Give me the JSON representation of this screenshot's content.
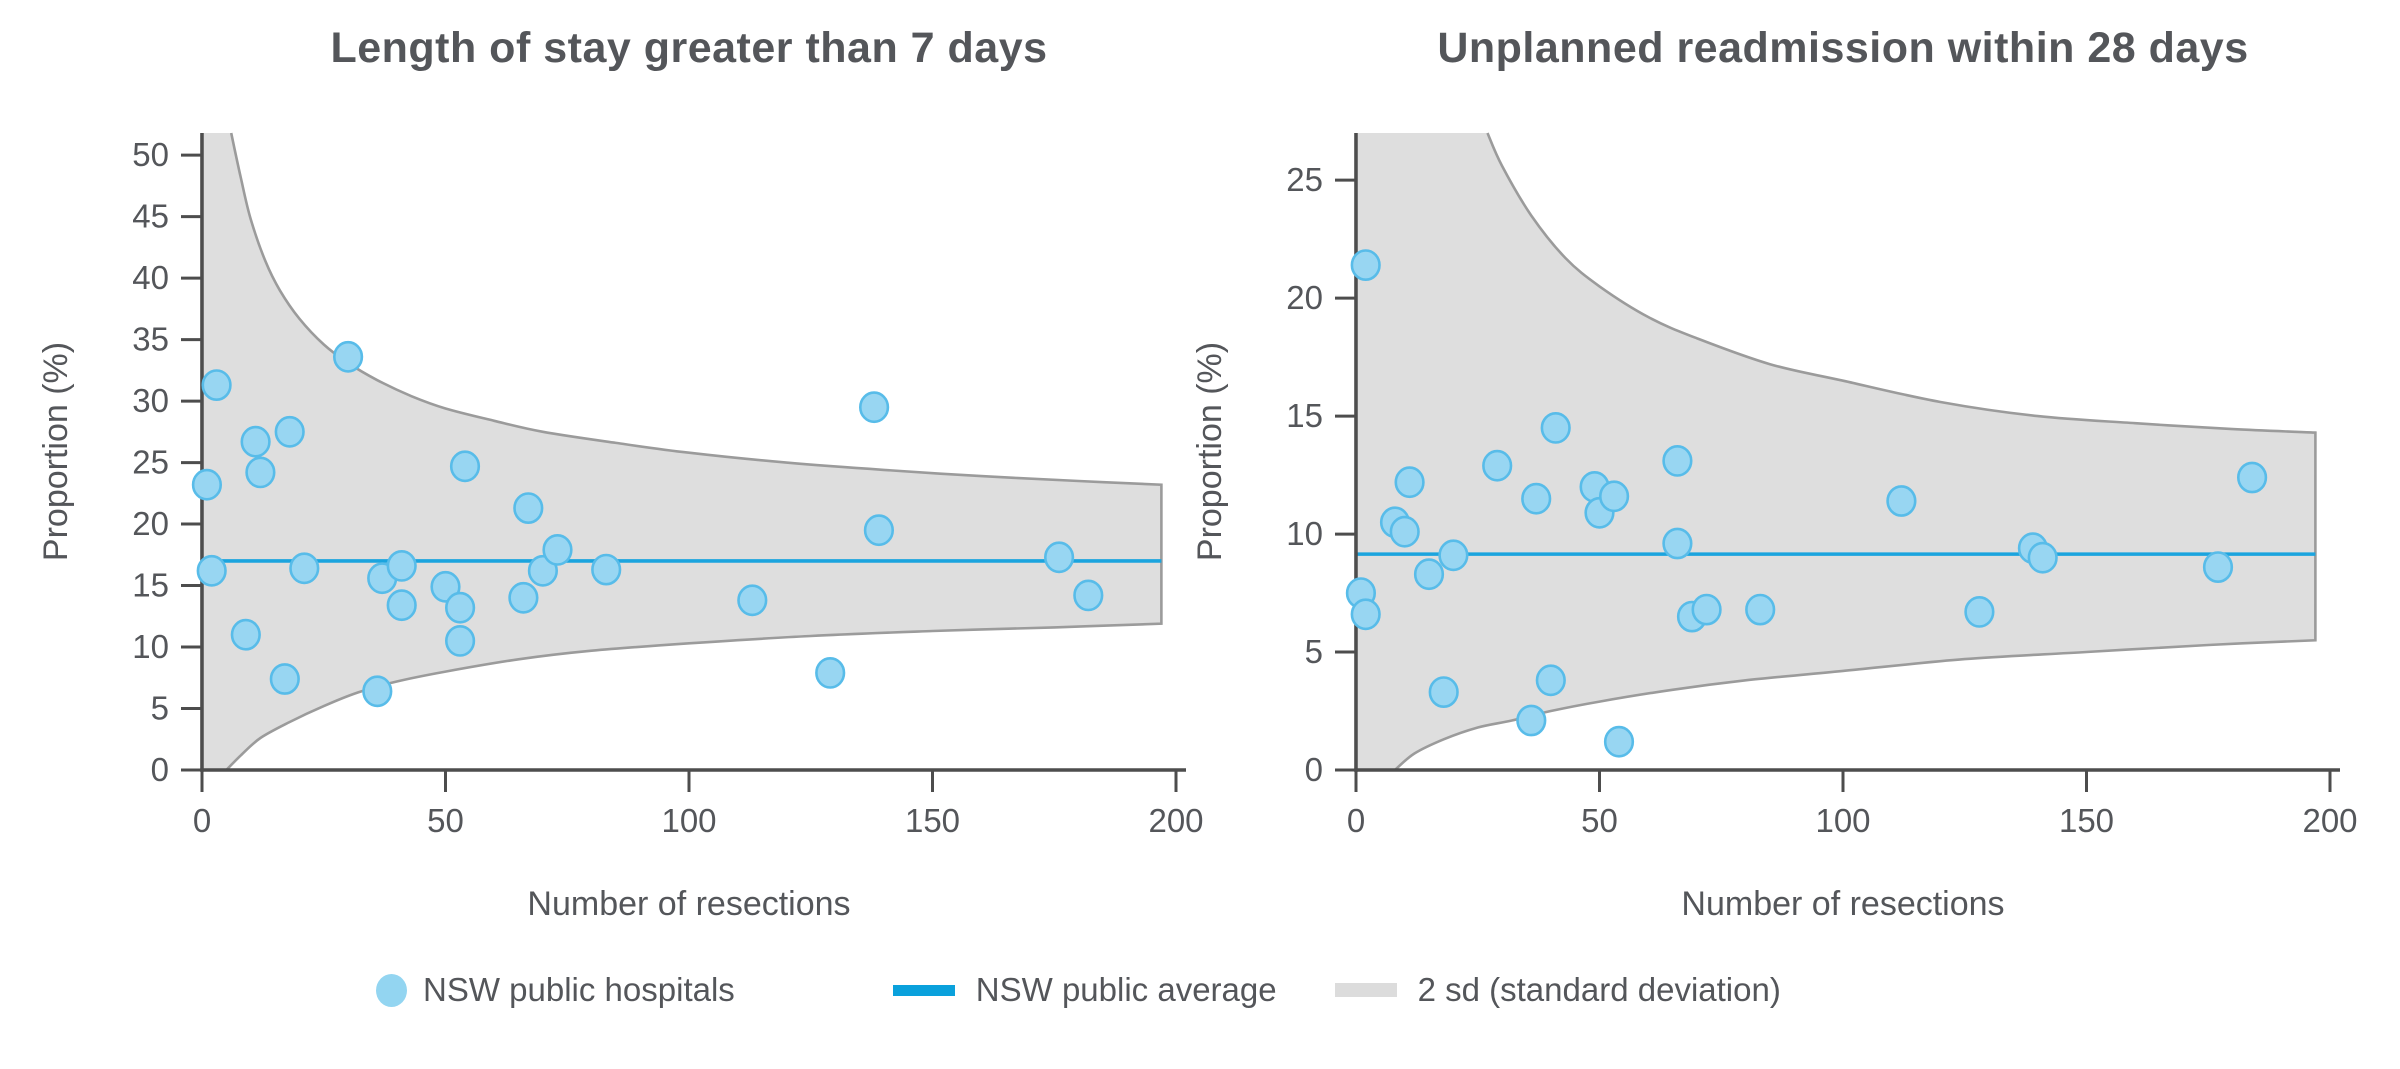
{
  "figure": {
    "background": "#ffffff"
  },
  "colors": {
    "title_text": "#54565a",
    "tick_text": "#54565a",
    "axis_line": "#4d4d4d",
    "band_fill": "#dedede",
    "band_stroke": "#9b9b9b",
    "mean_line": "#1ba4de",
    "dot_fill": "#98d6f2",
    "dot_stroke": "#58bce9",
    "legend_text": "#54565a",
    "legend_line_swatch": "#0aa1dc",
    "legend_band_swatch": "#dcdcdc"
  },
  "legend": {
    "items": [
      {
        "label": "NSW public hospitals",
        "marker": "dot"
      },
      {
        "label": "NSW public average",
        "marker": "line"
      },
      {
        "label": "2 sd (standard deviation)",
        "marker": "band"
      }
    ]
  },
  "chart_data": [
    {
      "type": "scatter",
      "title": "Length of stay greater than 7 days",
      "xlabel": "Number of resections",
      "ylabel": "Proportion (%)",
      "xlim": [
        0,
        200
      ],
      "ylim": [
        0,
        51.8
      ],
      "xticks": [
        0,
        50,
        100,
        150,
        200
      ],
      "yticks": [
        0,
        5,
        10,
        15,
        20,
        25,
        30,
        35,
        40,
        45,
        50
      ],
      "grid": false,
      "legend_position": "bottom",
      "mean": 17.0,
      "band_x_end": 197,
      "points": [
        [
          1,
          23.2
        ],
        [
          2,
          16.2
        ],
        [
          3,
          31.3
        ],
        [
          9,
          11.0
        ],
        [
          11,
          26.7
        ],
        [
          12,
          24.2
        ],
        [
          17,
          7.4
        ],
        [
          18,
          27.5
        ],
        [
          21,
          16.4
        ],
        [
          30,
          33.6
        ],
        [
          36,
          6.4
        ],
        [
          37,
          15.6
        ],
        [
          41,
          16.6
        ],
        [
          41,
          13.4
        ],
        [
          50,
          14.9
        ],
        [
          53,
          13.2
        ],
        [
          53,
          10.5
        ],
        [
          54,
          24.7
        ],
        [
          66,
          14.0
        ],
        [
          67,
          21.3
        ],
        [
          70,
          16.2
        ],
        [
          73,
          17.9
        ],
        [
          83,
          16.3
        ],
        [
          113,
          13.8
        ],
        [
          129,
          7.9
        ],
        [
          138,
          29.5
        ],
        [
          139,
          19.5
        ],
        [
          176,
          17.3
        ],
        [
          182,
          14.2
        ]
      ],
      "funnel_upper": [
        [
          6,
          51.8
        ],
        [
          8,
          48.1
        ],
        [
          10,
          44.8
        ],
        [
          13,
          41.4
        ],
        [
          16,
          39.0
        ],
        [
          20,
          36.7
        ],
        [
          25,
          34.6
        ],
        [
          30,
          33.1
        ],
        [
          36,
          31.7
        ],
        [
          43,
          30.4
        ],
        [
          50,
          29.4
        ],
        [
          60,
          28.4
        ],
        [
          70,
          27.5
        ],
        [
          85,
          26.6
        ],
        [
          100,
          25.8
        ],
        [
          120,
          25.0
        ],
        [
          140,
          24.4
        ],
        [
          160,
          23.9
        ],
        [
          180,
          23.5
        ],
        [
          197,
          23.2
        ]
      ],
      "funnel_lower": [
        [
          5,
          0
        ],
        [
          8,
          1.2
        ],
        [
          12,
          2.6
        ],
        [
          18,
          3.9
        ],
        [
          25,
          5.2
        ],
        [
          32,
          6.3
        ],
        [
          40,
          7.2
        ],
        [
          50,
          8.0
        ],
        [
          65,
          9.0
        ],
        [
          80,
          9.7
        ],
        [
          100,
          10.3
        ],
        [
          125,
          10.9
        ],
        [
          150,
          11.3
        ],
        [
          175,
          11.6
        ],
        [
          197,
          11.9
        ]
      ]
    },
    {
      "type": "scatter",
      "title": "Unplanned readmission within 28 days",
      "xlabel": "Number of resections",
      "ylabel": "Proportion (%)",
      "xlim": [
        0,
        200
      ],
      "ylim": [
        0,
        27.0
      ],
      "xticks": [
        0,
        50,
        100,
        150,
        200
      ],
      "yticks": [
        0,
        5,
        10,
        15,
        20,
        25
      ],
      "grid": false,
      "legend_position": "bottom",
      "mean": 9.15,
      "band_x_end": 197,
      "points": [
        [
          1,
          7.5
        ],
        [
          2,
          6.6
        ],
        [
          2,
          21.4
        ],
        [
          8,
          10.5
        ],
        [
          10,
          10.1
        ],
        [
          11,
          12.2
        ],
        [
          15,
          8.3
        ],
        [
          18,
          3.3
        ],
        [
          20,
          9.1
        ],
        [
          29,
          12.9
        ],
        [
          36,
          2.1
        ],
        [
          37,
          11.5
        ],
        [
          40,
          3.8
        ],
        [
          41,
          14.5
        ],
        [
          49,
          12.0
        ],
        [
          50,
          10.9
        ],
        [
          53,
          11.6
        ],
        [
          54,
          1.2
        ],
        [
          66,
          13.1
        ],
        [
          66,
          9.6
        ],
        [
          69,
          6.5
        ],
        [
          72,
          6.8
        ],
        [
          83,
          6.8
        ],
        [
          112,
          11.4
        ],
        [
          128,
          6.7
        ],
        [
          139,
          9.4
        ],
        [
          141,
          9.0
        ],
        [
          177,
          8.6
        ],
        [
          184,
          12.4
        ]
      ],
      "funnel_upper": [
        [
          27,
          27.0
        ],
        [
          30,
          25.6
        ],
        [
          36,
          23.5
        ],
        [
          43,
          21.7
        ],
        [
          50,
          20.5
        ],
        [
          60,
          19.2
        ],
        [
          70,
          18.3
        ],
        [
          85,
          17.2
        ],
        [
          100,
          16.5
        ],
        [
          120,
          15.6
        ],
        [
          140,
          15.0
        ],
        [
          160,
          14.7
        ],
        [
          180,
          14.45
        ],
        [
          197,
          14.3
        ]
      ],
      "funnel_lower": [
        [
          8,
          0
        ],
        [
          12,
          0.7
        ],
        [
          18,
          1.3
        ],
        [
          25,
          1.8
        ],
        [
          32,
          2.1
        ],
        [
          40,
          2.5
        ],
        [
          50,
          2.9
        ],
        [
          65,
          3.4
        ],
        [
          80,
          3.8
        ],
        [
          100,
          4.2
        ],
        [
          125,
          4.7
        ],
        [
          150,
          5.0
        ],
        [
          175,
          5.3
        ],
        [
          197,
          5.5
        ]
      ]
    }
  ]
}
